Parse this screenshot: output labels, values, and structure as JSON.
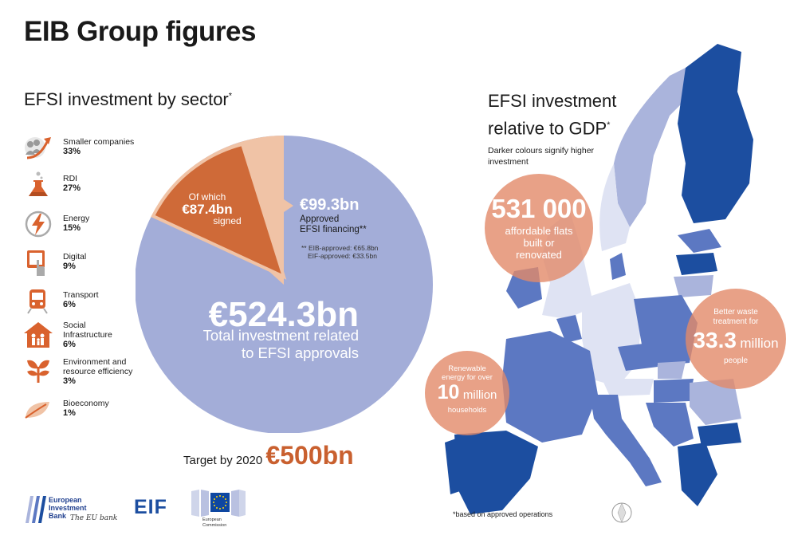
{
  "title": "EIB Group figures",
  "sector_section": {
    "title": "EFSI investment by sector",
    "asterisk": "*",
    "items": [
      {
        "label": "Smaller companies",
        "pct": "33%",
        "icon": "people-growth-icon"
      },
      {
        "label": "RDI",
        "pct": "27%",
        "icon": "flask-icon"
      },
      {
        "label": "Energy",
        "pct": "15%",
        "icon": "lightning-icon"
      },
      {
        "label": "Digital",
        "pct": "9%",
        "icon": "tablet-touch-icon"
      },
      {
        "label": "Transport",
        "pct": "6%",
        "icon": "train-icon"
      },
      {
        "label": "Social Infrastructure",
        "pct": "6%",
        "icon": "house-family-icon"
      },
      {
        "label": "Environment and resource efficiency",
        "pct": "3%",
        "icon": "tree-icon"
      },
      {
        "label": "Bioeconomy",
        "pct": "1%",
        "icon": "leaf-icon"
      }
    ]
  },
  "pie": {
    "total_amount": "€524.3bn",
    "total_label_line1": "Total investment related",
    "total_label_line2": "to EFSI approvals",
    "approved_amount": "€99.3bn",
    "approved_label_line1": "Approved",
    "approved_label_line2": "EFSI financing**",
    "approved_split_line1": "** EIB-approved: €65.8bn",
    "approved_split_line2": "EIF-approved: €33.5bn",
    "signed_prefix": "Of which",
    "signed_amount": "€87.4bn",
    "signed_suffix": "signed",
    "colors": {
      "total": "#a3add8",
      "approved": "#f0c3a6",
      "signed": "#cf6a38"
    }
  },
  "target": {
    "label": "Target by 2020",
    "amount": "€500bn"
  },
  "gdp_section": {
    "title_line1": "EFSI investment",
    "title_line2": "relative to GDP",
    "asterisk": "*",
    "note_line1": "Darker colours signify higher",
    "note_line2": "investment",
    "map_colors": {
      "dark": "#1c4ea0",
      "mid": "#5c78c2",
      "light": "#aab4dc",
      "pale": "#dfe3f3"
    }
  },
  "bubbles": [
    {
      "big": "531 000",
      "line1": "affordable flats",
      "line2": "built or",
      "line3": "renovated"
    },
    {
      "small1": "Better waste",
      "small2": "treatment for",
      "big": "33.3",
      "big_suffix": "million",
      "bottom": "people"
    },
    {
      "small1": "Renewable",
      "small2": "energy for over",
      "big": "10",
      "big_suffix": "million",
      "bottom": "households"
    }
  ],
  "footnote": "*based on approved operations",
  "logos": {
    "eib_line1": "European",
    "eib_line2": "Investment",
    "eib_line3": "Bank",
    "eib_tagline": "The EU bank",
    "eif": "EIF",
    "ec_line1": "European",
    "ec_line2": "Commission"
  }
}
